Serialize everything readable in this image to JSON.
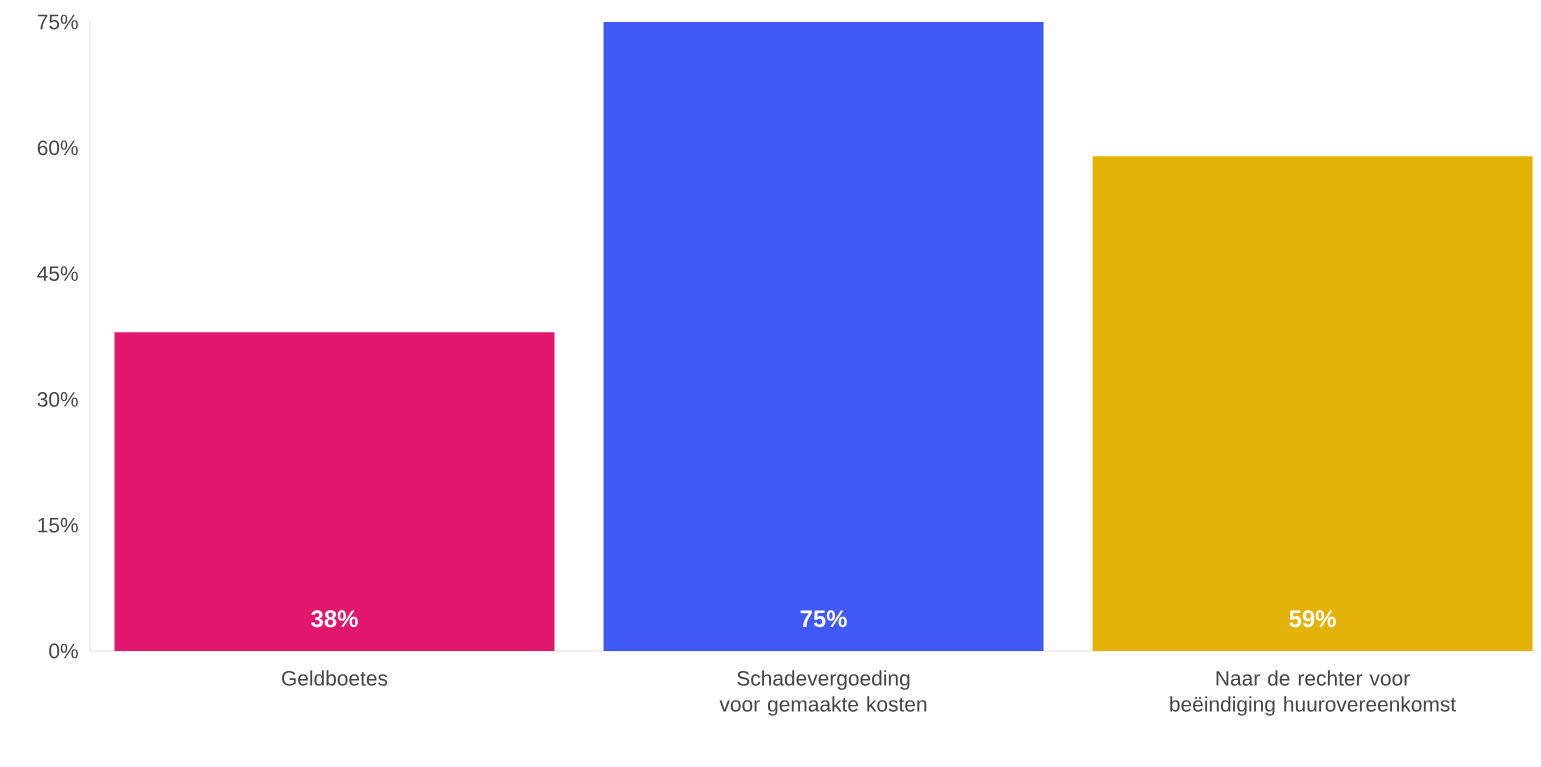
{
  "chart_data": {
    "type": "bar",
    "categories": [
      "Geldboetes",
      "Schadevergoeding voor gemaakte kosten",
      "Naar de rechter voor beëindiging huurovereenkomst"
    ],
    "values": [
      38,
      75,
      59
    ],
    "colors": [
      "#e0176d",
      "#3f58f6",
      "#e2b205"
    ],
    "value_labels": [
      "38%",
      "75%",
      "59%"
    ],
    "ylim": [
      0,
      75
    ],
    "yticks": [
      {
        "value": 0,
        "label": "0%"
      },
      {
        "value": 15,
        "label": "15%"
      },
      {
        "value": 30,
        "label": "30%"
      },
      {
        "value": 45,
        "label": "45%"
      },
      {
        "value": 60,
        "label": "60%"
      },
      {
        "value": 75,
        "label": "75%"
      }
    ]
  }
}
